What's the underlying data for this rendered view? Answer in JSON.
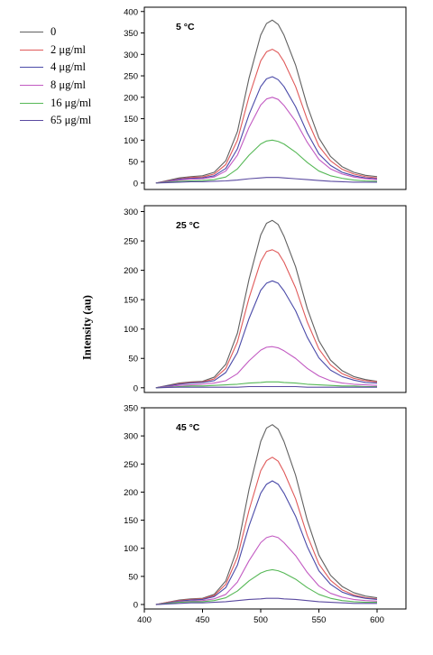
{
  "chart_data": {
    "type": "line",
    "ylabel": "Intensity (au)",
    "xlim": [
      400,
      600
    ],
    "xticks": [
      400,
      450,
      500,
      550,
      600
    ],
    "legend": {
      "position": "top-left",
      "entries": [
        "0",
        "2 μg/ml",
        "4 μg/ml",
        "8 μg/ml",
        "16 μg/ml",
        "65 μg/ml"
      ]
    },
    "series_colors": [
      "#606060",
      "#e05a5a",
      "#4a4aa8",
      "#c25ac2",
      "#56b856",
      "#5a4aa0"
    ],
    "x": [
      410,
      420,
      430,
      440,
      450,
      460,
      470,
      480,
      490,
      500,
      505,
      510,
      515,
      520,
      530,
      540,
      550,
      560,
      570,
      580,
      590,
      600
    ],
    "panels": [
      {
        "label": "5 °C",
        "ylim": [
          -15,
          410
        ],
        "yticks": [
          0,
          50,
          100,
          150,
          200,
          250,
          300,
          350,
          400
        ],
        "series": [
          {
            "name": "0",
            "values": [
              0,
              6,
              12,
              15,
              17,
              25,
              52,
              120,
              245,
              345,
              372,
              380,
              370,
              345,
              275,
              180,
              105,
              62,
              38,
              25,
              18,
              15
            ]
          },
          {
            "name": "2 μg/ml",
            "values": [
              0,
              5,
              10,
              13,
              14,
              21,
              43,
              100,
              202,
              285,
              306,
              312,
              304,
              283,
              225,
              148,
              86,
              52,
              32,
              21,
              15,
              12
            ]
          },
          {
            "name": "4 μg/ml",
            "values": [
              0,
              4,
              9,
              11,
              12,
              17,
              34,
              80,
              160,
              225,
              243,
              248,
              241,
              225,
              178,
              117,
              68,
              41,
              25,
              17,
              12,
              10
            ]
          },
          {
            "name": "8 μg/ml",
            "values": [
              0,
              3,
              7,
              9,
              10,
              14,
              28,
              65,
              130,
              182,
              196,
              200,
              195,
              181,
              144,
              95,
              55,
              33,
              21,
              14,
              10,
              8
            ]
          },
          {
            "name": "16 μg/ml",
            "values": [
              0,
              2,
              4,
              5,
              6,
              8,
              14,
              33,
              65,
              91,
              98,
              100,
              97,
              91,
              72,
              48,
              28,
              17,
              11,
              7,
              5,
              4
            ]
          },
          {
            "name": "65 μg/ml",
            "values": [
              0,
              1,
              2,
              3,
              3,
              4,
              5,
              7,
              10,
              12,
              13,
              13,
              13,
              12,
              10,
              8,
              6,
              4,
              3,
              2,
              2,
              2
            ]
          }
        ]
      },
      {
        "label": "25 °C",
        "ylim": [
          -8,
          310
        ],
        "yticks": [
          0,
          50,
          100,
          150,
          200,
          250,
          300
        ],
        "series": [
          {
            "name": "0",
            "values": [
              0,
              4,
              8,
              10,
              11,
              18,
              40,
              93,
              185,
              260,
              280,
              285,
              278,
              258,
              206,
              135,
              80,
              47,
              29,
              19,
              14,
              11
            ]
          },
          {
            "name": "2 μg/ml",
            "values": [
              0,
              3,
              7,
              9,
              10,
              15,
              33,
              78,
              153,
              215,
              232,
              235,
              230,
              214,
              170,
              112,
              66,
              39,
              24,
              16,
              12,
              10
            ]
          },
          {
            "name": "4 μg/ml",
            "values": [
              0,
              3,
              6,
              8,
              9,
              12,
              26,
              60,
              118,
              166,
              178,
              182,
              178,
              165,
              131,
              86,
              51,
              30,
              19,
              13,
              9,
              8
            ]
          },
          {
            "name": "8 μg/ml",
            "values": [
              0,
              2,
              4,
              5,
              6,
              8,
              12,
              24,
              46,
              64,
              69,
              70,
              68,
              63,
              50,
              33,
              20,
              12,
              8,
              6,
              5,
              4
            ]
          },
          {
            "name": "16 μg/ml",
            "values": [
              0,
              1,
              2,
              3,
              3,
              4,
              5,
              6,
              8,
              9,
              10,
              10,
              10,
              9,
              8,
              6,
              5,
              4,
              3,
              3,
              2,
              2
            ]
          },
          {
            "name": "65 μg/ml",
            "values": [
              0,
              0.5,
              1,
              1,
              1,
              1,
              1,
              1,
              2,
              2,
              2,
              2,
              2,
              2,
              2,
              1,
              1,
              1,
              1,
              1,
              1,
              1
            ]
          }
        ]
      },
      {
        "label": "45 °C",
        "ylim": [
          -8,
          350
        ],
        "yticks": [
          0,
          50,
          100,
          150,
          200,
          250,
          300,
          350
        ],
        "series": [
          {
            "name": "0",
            "values": [
              0,
              4,
              8,
              10,
              11,
              18,
              42,
              100,
              205,
              290,
              314,
              320,
              312,
              290,
              230,
              150,
              88,
              52,
              32,
              21,
              15,
              12
            ]
          },
          {
            "name": "2 μg/ml",
            "values": [
              0,
              4,
              7,
              9,
              10,
              16,
              36,
              84,
              168,
              238,
              256,
              262,
              255,
              236,
              188,
              123,
              72,
              43,
              26,
              17,
              12,
              10
            ]
          },
          {
            "name": "4 μg/ml",
            "values": [
              0,
              3,
              6,
              8,
              9,
              14,
              30,
              70,
              140,
              198,
              214,
              220,
              214,
              198,
              157,
              103,
              60,
              36,
              22,
              15,
              11,
              9
            ]
          },
          {
            "name": "8 μg/ml",
            "values": [
              0,
              2,
              5,
              6,
              7,
              10,
              18,
              40,
              78,
              110,
              119,
              122,
              119,
              110,
              87,
              57,
              33,
              20,
              13,
              9,
              7,
              6
            ]
          },
          {
            "name": "16 μg/ml",
            "values": [
              0,
              2,
              4,
              5,
              5,
              7,
              12,
              24,
              42,
              56,
              60,
              62,
              60,
              56,
              45,
              30,
              18,
              11,
              7,
              5,
              4,
              4
            ]
          },
          {
            "name": "65 μg/ml",
            "values": [
              0,
              1,
              2,
              3,
              3,
              4,
              5,
              7,
              9,
              10,
              11,
              11,
              11,
              10,
              9,
              7,
              5,
              4,
              3,
              2,
              2,
              2
            ]
          }
        ]
      }
    ]
  }
}
